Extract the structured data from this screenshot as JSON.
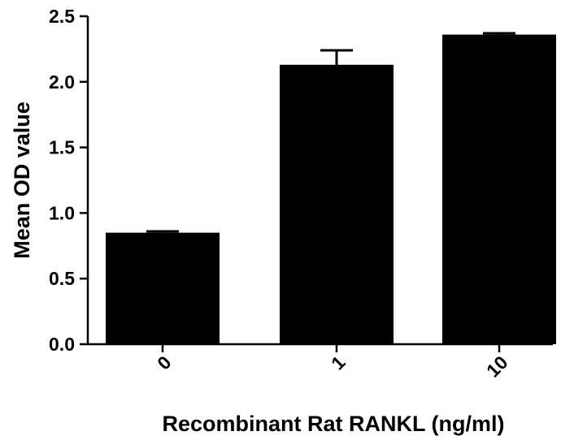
{
  "chart_data": {
    "type": "bar",
    "title": "",
    "xlabel": "Recombinant Rat RANKL (ng/ml)",
    "ylabel": "Mean OD value",
    "categories": [
      "0",
      "1",
      "10"
    ],
    "values": [
      0.85,
      2.13,
      2.36
    ],
    "error_upper": [
      0.86,
      2.24,
      2.37
    ],
    "ylim": [
      0,
      2.5
    ],
    "yticks": [
      "0.0",
      "0.5",
      "1.0",
      "1.5",
      "2.0",
      "2.5"
    ],
    "bar_color": "#000000",
    "grid": false,
    "legend": "none"
  }
}
